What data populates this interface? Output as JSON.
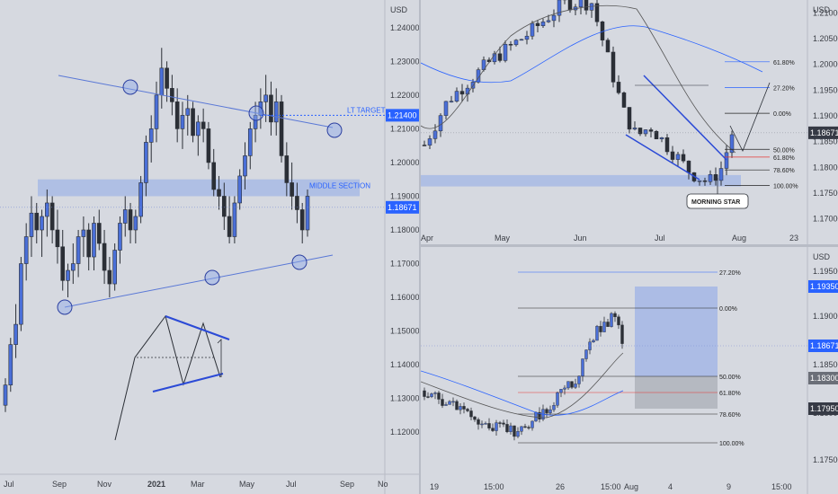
{
  "chart_data": [
    {
      "type": "candlestick",
      "pane": "left",
      "currency": "USD",
      "y_ticks": [
        "1.24000",
        "1.23000",
        "1.22000",
        "1.21000",
        "1.20000",
        "1.19000",
        "1.18000",
        "1.17000",
        "1.16000",
        "1.15000",
        "1.14000",
        "1.13000",
        "1.12000"
      ],
      "ylim": [
        1.115,
        1.245
      ],
      "x_ticks": [
        "Jul",
        "Sep",
        "Nov",
        "2021",
        "Mar",
        "May",
        "Jul",
        "Sep",
        "No"
      ],
      "current_price": "1.18671",
      "target_price": "1.21400",
      "labels": {
        "target": "LT TARGET",
        "middle": "MIDDLE SECTION"
      },
      "middle_zone": [
        1.19,
        1.195
      ],
      "candles": [
        [
          1.128,
          1.136,
          1.126,
          1.134
        ],
        [
          1.134,
          1.148,
          1.132,
          1.146
        ],
        [
          1.146,
          1.158,
          1.142,
          1.152
        ],
        [
          1.152,
          1.172,
          1.15,
          1.17
        ],
        [
          1.17,
          1.182,
          1.165,
          1.178
        ],
        [
          1.178,
          1.19,
          1.172,
          1.185
        ],
        [
          1.185,
          1.188,
          1.176,
          1.18
        ],
        [
          1.18,
          1.186,
          1.172,
          1.184
        ],
        [
          1.184,
          1.192,
          1.178,
          1.188
        ],
        [
          1.188,
          1.19,
          1.176,
          1.18
        ],
        [
          1.18,
          1.186,
          1.17,
          1.175
        ],
        [
          1.175,
          1.18,
          1.162,
          1.165
        ],
        [
          1.165,
          1.17,
          1.16,
          1.168
        ],
        [
          1.168,
          1.176,
          1.164,
          1.17
        ],
        [
          1.17,
          1.18,
          1.166,
          1.178
        ],
        [
          1.178,
          1.184,
          1.172,
          1.18
        ],
        [
          1.18,
          1.182,
          1.168,
          1.172
        ],
        [
          1.172,
          1.184,
          1.168,
          1.182
        ],
        [
          1.182,
          1.186,
          1.174,
          1.176
        ],
        [
          1.176,
          1.18,
          1.164,
          1.168
        ],
        [
          1.168,
          1.172,
          1.16,
          1.164
        ],
        [
          1.164,
          1.176,
          1.162,
          1.174
        ],
        [
          1.174,
          1.184,
          1.17,
          1.182
        ],
        [
          1.182,
          1.19,
          1.178,
          1.186
        ],
        [
          1.186,
          1.188,
          1.176,
          1.18
        ],
        [
          1.18,
          1.186,
          1.176,
          1.184
        ],
        [
          1.184,
          1.196,
          1.182,
          1.194
        ],
        [
          1.194,
          1.208,
          1.19,
          1.206
        ],
        [
          1.206,
          1.214,
          1.2,
          1.21
        ],
        [
          1.21,
          1.224,
          1.206,
          1.22
        ],
        [
          1.22,
          1.234,
          1.216,
          1.228
        ],
        [
          1.228,
          1.23,
          1.218,
          1.222
        ],
        [
          1.222,
          1.226,
          1.214,
          1.218
        ],
        [
          1.218,
          1.222,
          1.206,
          1.21
        ],
        [
          1.21,
          1.218,
          1.204,
          1.214
        ],
        [
          1.214,
          1.22,
          1.208,
          1.216
        ],
        [
          1.216,
          1.218,
          1.206,
          1.208
        ],
        [
          1.208,
          1.214,
          1.202,
          1.212
        ],
        [
          1.212,
          1.216,
          1.206,
          1.21
        ],
        [
          1.21,
          1.212,
          1.198,
          1.2
        ],
        [
          1.2,
          1.204,
          1.19,
          1.192
        ],
        [
          1.192,
          1.196,
          1.186,
          1.19
        ],
        [
          1.19,
          1.194,
          1.18,
          1.184
        ],
        [
          1.184,
          1.19,
          1.176,
          1.178
        ],
        [
          1.178,
          1.19,
          1.176,
          1.188
        ],
        [
          1.188,
          1.198,
          1.186,
          1.196
        ],
        [
          1.196,
          1.206,
          1.192,
          1.202
        ],
        [
          1.202,
          1.212,
          1.198,
          1.21
        ],
        [
          1.21,
          1.218,
          1.206,
          1.214
        ],
        [
          1.214,
          1.222,
          1.21,
          1.218
        ],
        [
          1.218,
          1.226,
          1.212,
          1.22
        ],
        [
          1.22,
          1.224,
          1.208,
          1.212
        ],
        [
          1.212,
          1.222,
          1.208,
          1.218
        ],
        [
          1.218,
          1.22,
          1.2,
          1.202
        ],
        [
          1.202,
          1.206,
          1.19,
          1.194
        ],
        [
          1.194,
          1.2,
          1.186,
          1.19
        ],
        [
          1.19,
          1.194,
          1.182,
          1.186
        ],
        [
          1.186,
          1.188,
          1.176,
          1.18
        ],
        [
          1.18,
          1.192,
          1.178,
          1.19
        ]
      ],
      "zigzag": [
        [
          1.122,
          0
        ],
        [
          1.15,
          0.15
        ],
        [
          1.16,
          0.32
        ],
        [
          1.145,
          0.5
        ],
        [
          1.158,
          0.68
        ],
        [
          1.143,
          0.84
        ],
        [
          1.153,
          1.0
        ]
      ]
    },
    {
      "type": "candlestick",
      "pane": "top-right",
      "currency": "USD",
      "y_ticks": [
        "1.21000",
        "1.20500",
        "1.20000",
        "1.19500",
        "1.19000",
        "1.18500",
        "1.18000",
        "1.17500",
        "1.17000"
      ],
      "ylim": [
        1.1675,
        1.2125
      ],
      "x_ticks": [
        "Apr",
        "May",
        "Jun",
        "Jul",
        "Aug",
        "23"
      ],
      "current_price": "1.18671",
      "fib_levels": [
        {
          "label": "61.80%",
          "value": 1.2005,
          "color": "#2962ff"
        },
        {
          "label": "27.20%",
          "value": 1.1955,
          "color": "#2962ff"
        },
        {
          "label": "0.00%",
          "value": 1.1905,
          "color": "#222"
        },
        {
          "label": "50.00%",
          "value": 1.1835,
          "color": "#222"
        },
        {
          "label": "61.80%",
          "value": 1.182,
          "color": "#e53935"
        },
        {
          "label": "78.60%",
          "value": 1.1795,
          "color": "#222"
        },
        {
          "label": "100.00%",
          "value": 1.1765,
          "color": "#222"
        }
      ],
      "annotation": "MORNING STAR"
    },
    {
      "type": "candlestick",
      "pane": "bottom-right",
      "currency": "USD",
      "y_ticks": [
        "1.19500",
        "1.19000",
        "1.18500",
        "1.18000",
        "1.17500"
      ],
      "ylim": [
        1.1715,
        1.1985
      ],
      "x_ticks": [
        "19",
        "15:00",
        "26",
        "15:00",
        "Aug",
        "4",
        "9",
        "15:00"
      ],
      "price_tags": [
        {
          "value": "1.19350",
          "style": "blue"
        },
        {
          "value": "1.18671",
          "style": "blue"
        },
        {
          "value": "1.18300",
          "style": "gray"
        },
        {
          "value": "1.17950",
          "style": "dark"
        }
      ],
      "fib_levels": [
        {
          "label": "27.20%",
          "color": "#2962ff"
        },
        {
          "label": "0.00%",
          "color": "#222"
        },
        {
          "label": "50.00%",
          "color": "#222"
        },
        {
          "label": "61.80%",
          "color": "#e53935"
        },
        {
          "label": "78.60%",
          "color": "#222"
        },
        {
          "label": "100.00%",
          "color": "#222"
        }
      ]
    }
  ]
}
